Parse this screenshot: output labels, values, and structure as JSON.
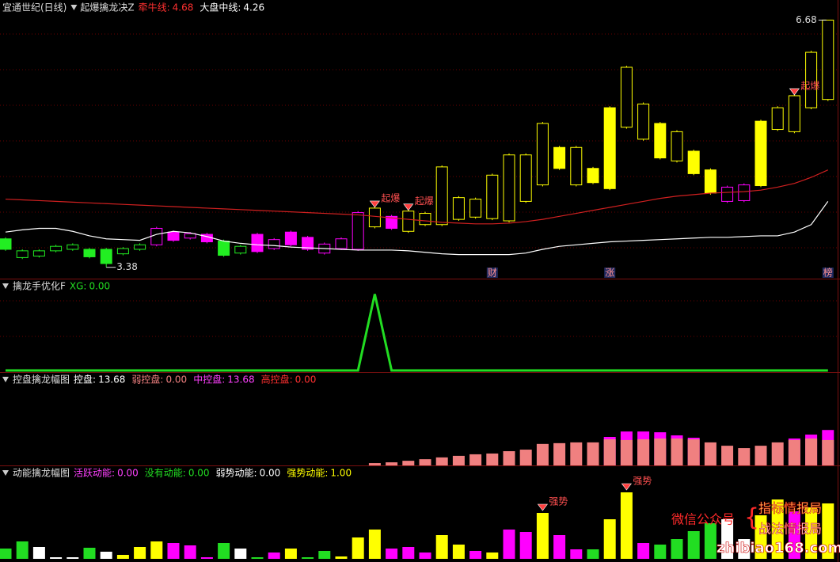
{
  "chart_data": [
    {
      "type": "candlestick",
      "title": "宜通世纪(日线)",
      "subtitle": "起爆擒龙决Z",
      "ylim": [
        3.25,
        6.8
      ],
      "readouts": [
        {
          "label": "牵牛线:",
          "value": 4.68,
          "color": "#ff3030"
        },
        {
          "label": "大盘中线:",
          "value": 4.26,
          "color": "#ffffff"
        }
      ],
      "open": [
        3.76,
        3.51,
        3.53,
        3.6,
        3.62,
        3.62,
        3.62,
        3.56,
        3.62,
        3.68,
        3.85,
        3.77,
        3.82,
        3.73,
        3.57,
        3.82,
        3.63,
        3.85,
        3.78,
        3.57,
        3.63,
        3.62,
        3.92,
        4.06,
        3.86,
        3.95,
        3.95,
        4.02,
        4.05,
        4.03,
        4.0,
        4.26,
        4.48,
        4.98,
        4.48,
        4.7,
        5.51,
        5.25,
        5.09,
        5.3,
        4.8,
        4.93,
        4.68,
        4.26,
        4.27,
        5.33,
        5.22,
        5.19,
        5.51,
        5.62
      ],
      "high": [
        3.78,
        3.62,
        3.62,
        3.68,
        3.7,
        3.64,
        3.64,
        3.65,
        3.7,
        3.92,
        3.87,
        3.85,
        3.84,
        3.75,
        3.68,
        3.84,
        3.77,
        3.87,
        3.8,
        3.71,
        3.78,
        4.13,
        4.2,
        4.08,
        4.16,
        4.12,
        4.74,
        4.33,
        4.31,
        4.63,
        4.9,
        4.9,
        5.32,
        5.0,
        5.0,
        4.72,
        5.53,
        6.07,
        5.58,
        5.32,
        5.21,
        4.95,
        4.7,
        4.47,
        4.5,
        5.35,
        5.53,
        5.69,
        6.27,
        6.68
      ],
      "low": [
        3.6,
        3.49,
        3.51,
        3.58,
        3.6,
        3.5,
        3.38,
        3.54,
        3.6,
        3.66,
        3.72,
        3.75,
        3.7,
        3.52,
        3.55,
        3.57,
        3.61,
        3.66,
        3.6,
        3.55,
        3.61,
        3.6,
        3.9,
        3.88,
        3.84,
        3.93,
        3.93,
        4.0,
        4.03,
        4.01,
        3.98,
        4.24,
        4.46,
        4.68,
        4.46,
        4.49,
        4.41,
        5.23,
        5.07,
        4.82,
        4.78,
        4.61,
        4.35,
        4.24,
        4.25,
        4.45,
        5.2,
        5.17,
        5.49,
        5.6
      ],
      "close": [
        3.62,
        3.6,
        3.6,
        3.66,
        3.68,
        3.52,
        3.43,
        3.63,
        3.68,
        3.9,
        3.74,
        3.83,
        3.72,
        3.54,
        3.66,
        3.59,
        3.75,
        3.68,
        3.62,
        3.69,
        3.76,
        4.11,
        4.17,
        3.9,
        4.13,
        4.1,
        4.72,
        4.31,
        4.29,
        4.61,
        4.88,
        4.88,
        5.3,
        4.7,
        4.98,
        4.51,
        4.43,
        6.05,
        5.56,
        4.84,
        5.19,
        4.63,
        4.37,
        4.45,
        4.48,
        4.47,
        5.51,
        5.67,
        6.25,
        6.68
      ],
      "colors": [
        "#22ee22",
        "#22ee22",
        "#22ee22",
        "#22ee22",
        "#22ee22",
        "#22ee22",
        "#22ee22",
        "#22ee22",
        "#22ee22",
        "#ff00ff",
        "#ff00ff",
        "#ff00ff",
        "#ff00ff",
        "#22ee22",
        "#22ee22",
        "#ff00ff",
        "#ff00ff",
        "#ff00ff",
        "#ff00ff",
        "#ff00ff",
        "#ff00ff",
        "#ff00ff",
        "#ffff00",
        "#ff00ff",
        "#ffff00",
        "#ffff00",
        "#ffff00",
        "#ffff00",
        "#ffff00",
        "#ffff00",
        "#ffff00",
        "#ffff00",
        "#ffff00",
        "#ffff00",
        "#ffff00",
        "#ffff00",
        "#ffff00",
        "#ffff00",
        "#ffff00",
        "#ffff00",
        "#ffff00",
        "#ffff00",
        "#ffff00",
        "#ff00ff",
        "#ff00ff",
        "#ffff00",
        "#ffff00",
        "#ffff00",
        "#ffff00",
        "#ffff00"
      ],
      "series": [
        {
          "color": "#d02020",
          "values": [
            4.29,
            4.28,
            4.27,
            4.26,
            4.25,
            4.24,
            4.23,
            4.22,
            4.21,
            4.2,
            4.19,
            4.18,
            4.17,
            4.16,
            4.15,
            4.14,
            4.13,
            4.12,
            4.11,
            4.1,
            4.09,
            4.08,
            4.06,
            4.04,
            4.02,
            4.0,
            3.98,
            3.97,
            3.96,
            3.96,
            3.97,
            3.99,
            4.02,
            4.06,
            4.1,
            4.14,
            4.18,
            4.22,
            4.26,
            4.3,
            4.33,
            4.35,
            4.37,
            4.38,
            4.39,
            4.41,
            4.45,
            4.5,
            4.58,
            4.68
          ]
        },
        {
          "color": "#ffffff",
          "values": [
            3.85,
            3.88,
            3.9,
            3.9,
            3.86,
            3.8,
            3.76,
            3.75,
            3.74,
            3.82,
            3.86,
            3.84,
            3.79,
            3.73,
            3.7,
            3.68,
            3.67,
            3.65,
            3.64,
            3.63,
            3.62,
            3.61,
            3.61,
            3.61,
            3.6,
            3.58,
            3.56,
            3.55,
            3.55,
            3.55,
            3.55,
            3.57,
            3.62,
            3.66,
            3.68,
            3.7,
            3.72,
            3.73,
            3.74,
            3.75,
            3.76,
            3.77,
            3.78,
            3.78,
            3.79,
            3.8,
            3.8,
            3.85,
            3.95,
            4.26
          ]
        }
      ],
      "signals": [
        null,
        null,
        null,
        null,
        null,
        null,
        null,
        null,
        null,
        null,
        null,
        null,
        null,
        null,
        null,
        null,
        null,
        null,
        null,
        null,
        null,
        null,
        "起爆",
        null,
        "起爆",
        null,
        null,
        null,
        null,
        null,
        null,
        null,
        null,
        null,
        null,
        null,
        null,
        null,
        null,
        null,
        null,
        null,
        null,
        null,
        null,
        null,
        null,
        "起爆",
        null,
        null
      ],
      "events": [
        null,
        null,
        null,
        null,
        null,
        null,
        null,
        null,
        null,
        null,
        null,
        null,
        null,
        null,
        null,
        null,
        null,
        null,
        null,
        null,
        null,
        null,
        null,
        null,
        null,
        null,
        null,
        null,
        null,
        "财",
        null,
        null,
        null,
        null,
        null,
        null,
        "涨",
        null,
        null,
        null,
        null,
        null,
        null,
        null,
        null,
        null,
        null,
        null,
        null,
        "榜"
      ]
    },
    {
      "type": "line",
      "title": "擒龙手优化F",
      "ylim": [
        0,
        1.12
      ],
      "readouts": [
        {
          "label": "XG:",
          "value": {
            "value": 0,
            "label": "0.00"
          },
          "color": "#22dd22"
        }
      ],
      "series": [
        {
          "color": "#22dd22",
          "values": [
            0,
            0,
            0,
            0,
            0,
            0,
            0,
            0,
            0,
            0,
            0,
            0,
            0,
            0,
            0,
            0,
            0,
            0,
            0,
            0,
            0,
            0,
            1,
            0,
            0,
            0,
            0,
            0,
            0,
            0,
            0,
            0,
            0,
            0,
            0,
            0,
            0,
            0,
            0,
            0,
            0,
            0,
            0,
            0,
            0,
            0,
            0,
            0,
            0,
            0
          ]
        }
      ]
    },
    {
      "type": "bar",
      "title": "控盘擒龙幅图",
      "ylim": [
        0,
        33
      ],
      "readouts": [
        {
          "label": "控盘:",
          "value": 13.68,
          "color": "#ffffff"
        },
        {
          "label": "弱控盘:",
          "value": {
            "value": 0,
            "label": "0.00"
          },
          "color": "#f08080"
        },
        {
          "label": "中控盘:",
          "value": 13.68,
          "color": "#ff40ff"
        },
        {
          "label": "高控盘:",
          "value": {
            "value": 0,
            "label": "0.00"
          },
          "color": "#ff3030"
        }
      ],
      "series": [
        {
          "color": "#ff00ff",
          "values": [
            null,
            null,
            null,
            null,
            null,
            null,
            null,
            null,
            null,
            null,
            null,
            null,
            null,
            null,
            null,
            null,
            null,
            null,
            null,
            null,
            null,
            null,
            null,
            null,
            null,
            null,
            null,
            null,
            null,
            null,
            null,
            null,
            null,
            null,
            null,
            null,
            11.0,
            13.1,
            13.1,
            12.8,
            11.6,
            10.7,
            null,
            null,
            null,
            null,
            null,
            10.4,
            11.9,
            13.68
          ]
        },
        {
          "color": "#f08080",
          "values": [
            null,
            null,
            null,
            null,
            null,
            null,
            null,
            null,
            null,
            null,
            null,
            null,
            null,
            null,
            null,
            null,
            null,
            null,
            null,
            null,
            null,
            null,
            0.9,
            1.2,
            1.8,
            2.4,
            3.1,
            3.7,
            4.3,
            4.6,
            5.5,
            6.1,
            8.3,
            8.6,
            8.9,
            8.9,
            10.1,
            9.8,
            10.1,
            10.4,
            10.4,
            10.1,
            8.9,
            7.6,
            6.7,
            7.6,
            8.9,
            9.8,
            10.4,
            9.8
          ]
        }
      ]
    },
    {
      "type": "bar",
      "title": "动能擒龙幅图",
      "ylim": [
        0,
        100
      ],
      "readouts": [
        {
          "label": "活跃动能:",
          "value": {
            "value": 0,
            "label": "0.00"
          },
          "color": "#ff40ff"
        },
        {
          "label": "没有动能:",
          "value": {
            "value": 0,
            "label": "0.00"
          },
          "color": "#22dd22"
        },
        {
          "label": "弱势动能:",
          "value": {
            "value": 0,
            "label": "0.00"
          },
          "color": "#ffffff"
        },
        {
          "label": "强势动能:",
          "value": {
            "value": 1,
            "label": "1.00"
          },
          "color": "#ffff00"
        }
      ],
      "series": [
        {
          "values": [
            13,
            22,
            15,
            2,
            2,
            14,
            9,
            5,
            15,
            22,
            20,
            17,
            2,
            20,
            13,
            2,
            8,
            13,
            2,
            10,
            3,
            27,
            37,
            13,
            15,
            8,
            30,
            18,
            10,
            8,
            37,
            34,
            58,
            30,
            12,
            12,
            50,
            84,
            20,
            18,
            25,
            35,
            45,
            50,
            25,
            55,
            75,
            60,
            65,
            70
          ],
          "colors": [
            "#22dd22",
            "#22dd22",
            "#ffffff",
            "#ffffff",
            "#ffffff",
            "#22dd22",
            "#ffffff",
            "#ffff00",
            "#ffff00",
            "#ffff00",
            "#ff00ff",
            "#ff00ff",
            "#ff00ff",
            "#22dd22",
            "#ffffff",
            "#22dd22",
            "#ff00ff",
            "#ffff00",
            "#22dd22",
            "#22dd22",
            "#ffff00",
            "#ffff00",
            "#ffff00",
            "#ff00ff",
            "#ff00ff",
            "#ff00ff",
            "#ffff00",
            "#ffff00",
            "#ff00ff",
            "#ffff00",
            "#ff00ff",
            "#ff00ff",
            "#ffff00",
            "#ff00ff",
            "#ff00ff",
            "#22dd22",
            "#ffff00",
            "#ffff00",
            "#ff00ff",
            "#22dd22",
            "#22dd22",
            "#22dd22",
            "#22dd22",
            "#ffffff",
            "#ffffff",
            "#ffff00",
            "#ffff00",
            "#ff00ff",
            "#ffff00",
            "#ffff00"
          ]
        }
      ],
      "signals": [
        null,
        null,
        null,
        null,
        null,
        null,
        null,
        null,
        null,
        null,
        null,
        null,
        null,
        null,
        null,
        null,
        null,
        null,
        null,
        null,
        null,
        null,
        null,
        null,
        null,
        null,
        null,
        null,
        null,
        null,
        null,
        null,
        "强势",
        null,
        null,
        null,
        null,
        "强势",
        null,
        null,
        null,
        null,
        null,
        null,
        null,
        null,
        null,
        null,
        null,
        null
      ]
    }
  ],
  "watermark": {
    "account": "微信公众号",
    "name1": "指标情报局",
    "name2": "战法情报局",
    "site": "zhibiao168.com"
  }
}
